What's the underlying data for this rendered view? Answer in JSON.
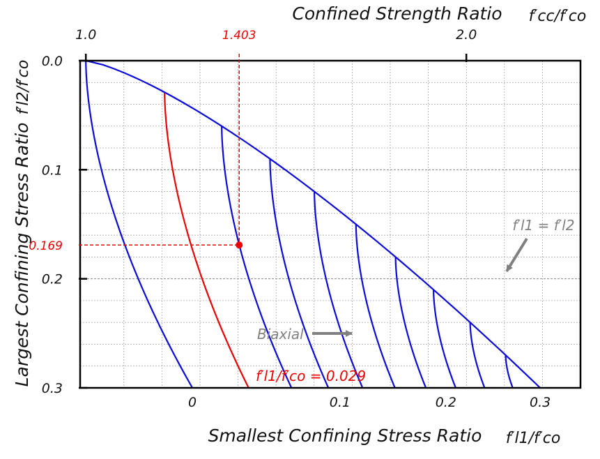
{
  "chart_data": {
    "type": "line",
    "top_axis": {
      "title": "Confined   Strength   Ratio",
      "title_symbol": "f′cc/f′co",
      "range": [
        0.985,
        2.3
      ],
      "ticks": [
        {
          "value": 1.0,
          "label": "1.0"
        },
        {
          "value": 2.0,
          "label": "2.0"
        }
      ]
    },
    "left_axis": {
      "title": "Largest   Confining   Stress   Ratio",
      "title_symbol": "f′l2/f′co",
      "range": [
        0.0,
        0.3
      ],
      "reversed": true,
      "ticks": [
        {
          "value": 0.0,
          "label": "0.0"
        },
        {
          "value": 0.1,
          "label": "0.1"
        },
        {
          "value": 0.2,
          "label": "0.2"
        },
        {
          "value": 0.3,
          "label": "0.3"
        }
      ],
      "minor_grid": [
        0.02,
        0.04,
        0.06,
        0.08,
        0.12,
        0.14,
        0.16,
        0.18,
        0.22,
        0.24,
        0.26,
        0.28
      ]
    },
    "bottom_axis": {
      "title": "Smallest   Confining   Stress   Ratio",
      "title_symbol": "f′l1/f′co",
      "ticks": [
        {
          "value": 0,
          "label": "0"
        },
        {
          "value": 0.1,
          "label": "0.1"
        },
        {
          "value": 0.2,
          "label": "0.2"
        },
        {
          "value": 0.3,
          "label": "0.3"
        }
      ]
    },
    "curves_fl1": [
      0,
      0.029,
      0.06,
      0.09,
      0.12,
      0.15,
      0.18,
      0.21,
      0.24,
      0.27,
      0.3
    ],
    "highlight_curve_fl1": 0.029,
    "highlight_point": {
      "strength_ratio": 1.403,
      "fl2": 0.169
    },
    "highlight_labels": {
      "top": "1.403",
      "left": "0.169"
    },
    "annotations": {
      "biaxial": "Biaxial",
      "equal_line": "f′l1 = f′l2",
      "highlight_curve": "f′l1/f′co = 0.029"
    },
    "grid": true,
    "colors": {
      "curves": "#0a0adc",
      "highlight": "#ee0000",
      "annotation": "#808080",
      "grid": "#999999"
    }
  }
}
